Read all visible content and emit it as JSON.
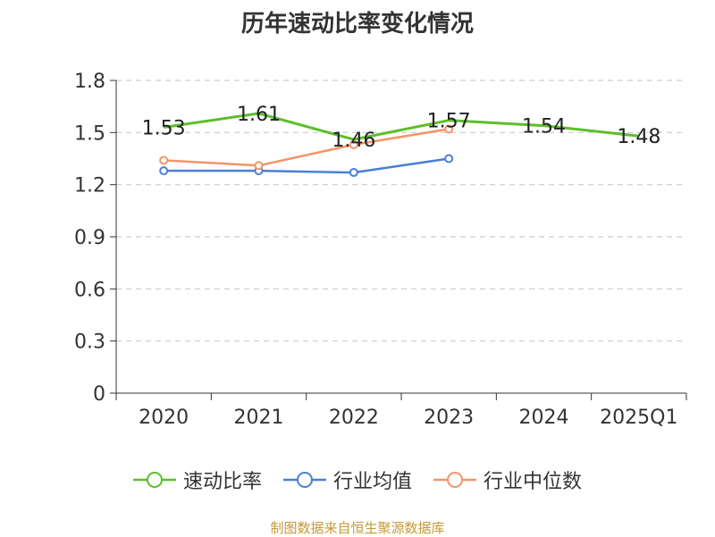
{
  "title": "历年速动比率变化情况",
  "source_note": "制图数据来自恒生聚源数据库",
  "chart_data": {
    "type": "line",
    "title": "历年速动比率变化情况",
    "categories": [
      "2020",
      "2021",
      "2022",
      "2023",
      "2024",
      "2025Q1"
    ],
    "yticks": [
      "0",
      "0.3",
      "0.6",
      "0.9",
      "1.2",
      "1.5",
      "1.8"
    ],
    "ylim": [
      0,
      1.8
    ],
    "grid": true,
    "legend_position": "bottom",
    "series": [
      {
        "name": "速动比率",
        "color": "#5cbf2a",
        "values": [
          1.53,
          1.61,
          1.46,
          1.57,
          1.54,
          1.48
        ],
        "labels": [
          "1.53",
          "1.61",
          "1.46",
          "1.57",
          "1.54",
          "1.48"
        ]
      },
      {
        "name": "行业均值",
        "color": "#4a7fd6",
        "values": [
          1.28,
          1.28,
          1.27,
          1.35,
          null,
          null
        ]
      },
      {
        "name": "行业中位数",
        "color": "#f59466",
        "values": [
          1.34,
          1.31,
          1.43,
          1.52,
          null,
          null
        ]
      }
    ]
  }
}
